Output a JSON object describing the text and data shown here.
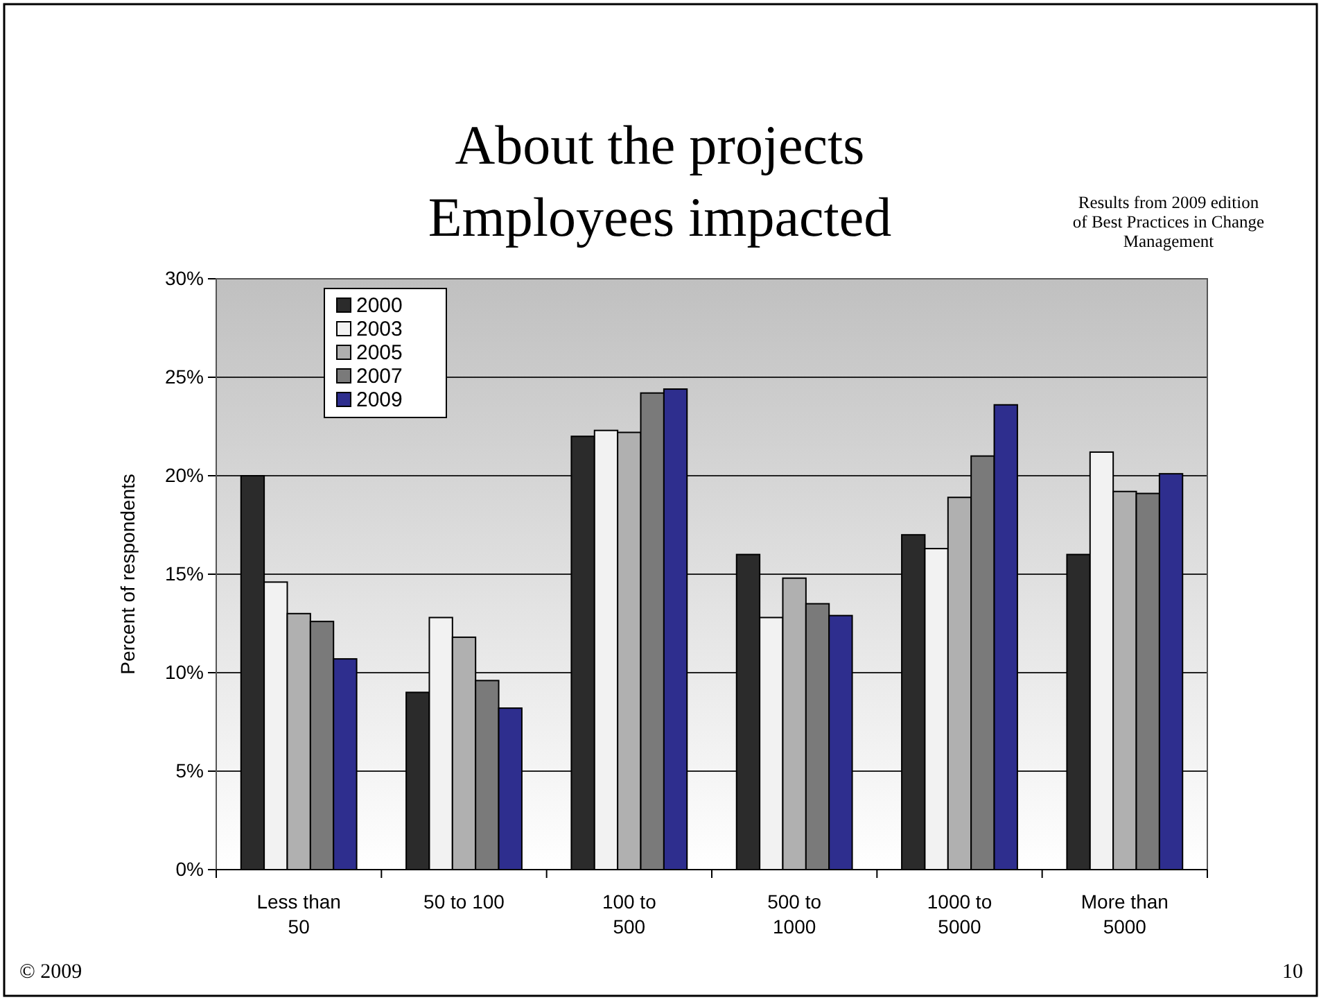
{
  "chart_data": {
    "type": "bar",
    "title": "About the projects",
    "subtitle": "Employees impacted",
    "ylabel": "Percent of respondents",
    "annotations": [
      "Results from 2009 edition of Best Practices in Change Management",
      "© 2009",
      "10"
    ],
    "categories": [
      "Less than 50",
      "50 to 100",
      "100 to 500",
      "500 to 1000",
      "1000 to 5000",
      "More than 5000"
    ],
    "series": [
      {
        "name": "2000",
        "color": "#2b2b2b",
        "values": [
          20,
          9,
          22,
          16,
          17,
          16
        ]
      },
      {
        "name": "2003",
        "color": "#f2f2f2",
        "values": [
          14.6,
          12.8,
          22.3,
          12.8,
          16.3,
          21.2
        ]
      },
      {
        "name": "2005",
        "color": "#b0b0b0",
        "values": [
          13,
          11.8,
          22.2,
          14.8,
          18.9,
          19.2
        ]
      },
      {
        "name": "2007",
        "color": "#7a7a7a",
        "values": [
          12.6,
          9.6,
          24.2,
          13.5,
          21,
          19.1
        ]
      },
      {
        "name": "2009",
        "color": "#2e2e8e",
        "values": [
          10.7,
          8.2,
          24.4,
          12.9,
          23.6,
          20.1
        ]
      }
    ],
    "ylim": [
      0,
      30
    ],
    "yticks": [
      {
        "value": 0,
        "label": "0%"
      },
      {
        "value": 5,
        "label": "5%"
      },
      {
        "value": 10,
        "label": "10%"
      },
      {
        "value": 15,
        "label": "15%"
      },
      {
        "value": 20,
        "label": "20%"
      },
      {
        "value": 25,
        "label": "25%"
      },
      {
        "value": 30,
        "label": "30%"
      }
    ],
    "grid": "y",
    "legend": "top left"
  }
}
